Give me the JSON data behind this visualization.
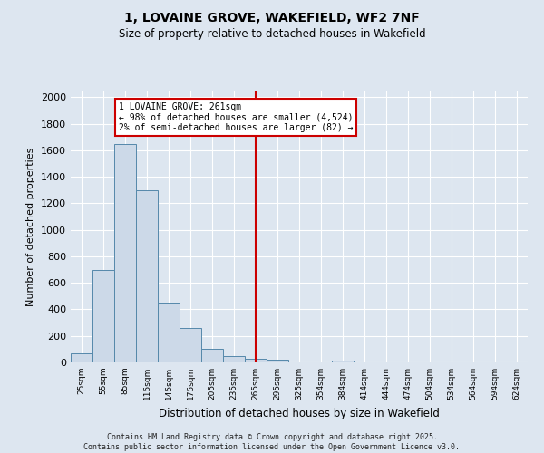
{
  "title": "1, LOVAINE GROVE, WAKEFIELD, WF2 7NF",
  "subtitle": "Size of property relative to detached houses in Wakefield",
  "xlabel": "Distribution of detached houses by size in Wakefield",
  "ylabel": "Number of detached properties",
  "bar_color": "#ccd9e8",
  "bar_edge_color": "#5588aa",
  "background_color": "#dde6f0",
  "grid_color": "#ffffff",
  "bin_labels": [
    "25sqm",
    "55sqm",
    "85sqm",
    "115sqm",
    "145sqm",
    "175sqm",
    "205sqm",
    "235sqm",
    "265sqm",
    "295sqm",
    "325sqm",
    "354sqm",
    "384sqm",
    "414sqm",
    "444sqm",
    "474sqm",
    "504sqm",
    "534sqm",
    "564sqm",
    "594sqm",
    "624sqm"
  ],
  "bar_values": [
    65,
    700,
    1650,
    1300,
    450,
    260,
    100,
    50,
    30,
    20,
    0,
    0,
    15,
    0,
    0,
    0,
    0,
    0,
    0,
    0,
    0
  ],
  "vline_x": 8.0,
  "vline_color": "#cc0000",
  "annotation_title": "1 LOVAINE GROVE: 261sqm",
  "annotation_line1": "← 98% of detached houses are smaller (4,524)",
  "annotation_line2": "2% of semi-detached houses are larger (82) →",
  "annotation_box_color": "#cc0000",
  "ylim": [
    0,
    2050
  ],
  "yticks": [
    0,
    200,
    400,
    600,
    800,
    1000,
    1200,
    1400,
    1600,
    1800,
    2000
  ],
  "footer_line1": "Contains HM Land Registry data © Crown copyright and database right 2025.",
  "footer_line2": "Contains public sector information licensed under the Open Government Licence v3.0."
}
